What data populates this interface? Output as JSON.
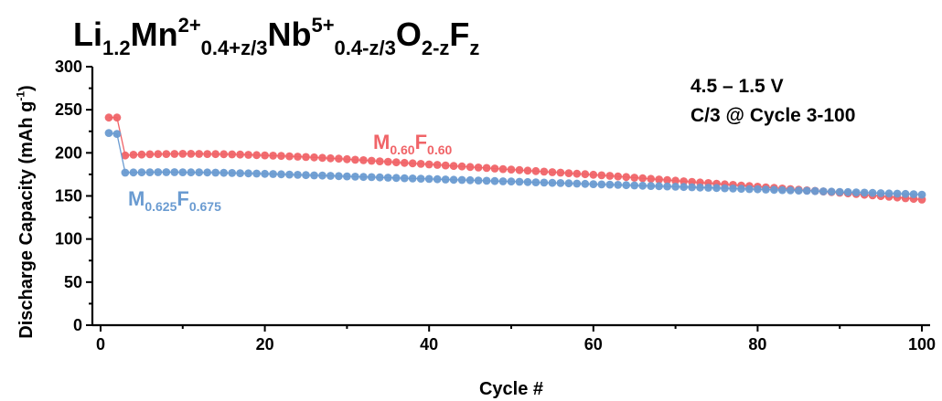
{
  "title": {
    "parts": [
      {
        "t": "Li",
        "k": "n"
      },
      {
        "t": "1.2",
        "k": "sub"
      },
      {
        "t": "Mn",
        "k": "n"
      },
      {
        "t": "2+",
        "k": "sup"
      },
      {
        "t": "0.4+z/3",
        "k": "sub"
      },
      {
        "t": "Nb",
        "k": "n"
      },
      {
        "t": "5+",
        "k": "sup"
      },
      {
        "t": "0.4-z/3",
        "k": "sub"
      },
      {
        "t": "O",
        "k": "n"
      },
      {
        "t": "2-z",
        "k": "sub"
      },
      {
        "t": "F",
        "k": "n"
      },
      {
        "t": "z",
        "k": "sub"
      }
    ]
  },
  "annotations": {
    "line1": "4.5 – 1.5 V",
    "line2": "C/3 @ Cycle 3-100"
  },
  "chart_data": {
    "type": "scatter",
    "xlabel": "Cycle #",
    "ylabel": "Discharge Capacity (mAh g-1)",
    "ylabel_parts": [
      {
        "t": "Discharge Capacity (mAh g",
        "k": "n"
      },
      {
        "t": "-1",
        "k": "sup"
      },
      {
        "t": ")",
        "k": "n"
      }
    ],
    "xlim": [
      -1,
      101
    ],
    "ylim": [
      0,
      300
    ],
    "xticks": [
      0,
      20,
      40,
      60,
      80,
      100
    ],
    "yticks": [
      0,
      50,
      100,
      150,
      200,
      250,
      300
    ],
    "grid": false,
    "x_start": 1,
    "series": [
      {
        "name_parts": [
          {
            "t": "M",
            "k": "n"
          },
          {
            "t": "0.60",
            "k": "sub"
          },
          {
            "t": "F",
            "k": "n"
          },
          {
            "t": "0.60",
            "k": "sub"
          }
        ],
        "color": "#f06468",
        "values": [
          241,
          241,
          197,
          197.8,
          198,
          198.3,
          198.5,
          198.7,
          198.8,
          198.9,
          198.9,
          198.8,
          198.7,
          198.6,
          198.4,
          198.2,
          198,
          197.7,
          197.4,
          197.1,
          196.8,
          196.4,
          196,
          195.6,
          195.2,
          194.7,
          194.2,
          193.7,
          193.2,
          192.6,
          192,
          191.4,
          190.8,
          190.2,
          189.6,
          189,
          188.4,
          187.8,
          187.2,
          186.6,
          186,
          185.4,
          184.8,
          184.2,
          183.6,
          183,
          182.4,
          181.8,
          181.2,
          180.6,
          180,
          179.4,
          178.8,
          178.2,
          177.6,
          177,
          176.4,
          175.8,
          175.2,
          174.6,
          174,
          173.3,
          172.6,
          171.9,
          171.2,
          170.5,
          169.8,
          169.1,
          168.4,
          167.7,
          167,
          166.3,
          165.6,
          164.9,
          164.2,
          163.5,
          162.8,
          162.1,
          161.4,
          160.7,
          160,
          159.3,
          158.6,
          157.9,
          157.2,
          156.5,
          155.8,
          155.1,
          154.4,
          153.7,
          153,
          152.2,
          151.4,
          150.6,
          149.8,
          149,
          148.2,
          147.4,
          146.6,
          145.8
        ]
      },
      {
        "name_parts": [
          {
            "t": "M",
            "k": "n"
          },
          {
            "t": "0.625",
            "k": "sub"
          },
          {
            "t": "F",
            "k": "n"
          },
          {
            "t": "0.675",
            "k": "sub"
          }
        ],
        "color": "#6a9bd1",
        "values": [
          223,
          222,
          177,
          177.2,
          177.4,
          177.5,
          177.6,
          177.6,
          177.6,
          177.5,
          177.4,
          177.3,
          177.2,
          177,
          176.8,
          176.6,
          176.4,
          176.2,
          176,
          175.7,
          175.4,
          175.1,
          174.8,
          174.5,
          174.2,
          173.9,
          173.6,
          173.3,
          173,
          172.7,
          172.4,
          172.1,
          171.8,
          171.5,
          171.2,
          170.9,
          170.6,
          170.3,
          170,
          169.7,
          169.4,
          169.1,
          168.8,
          168.5,
          168.2,
          167.9,
          167.6,
          167.3,
          167,
          166.7,
          166.4,
          166.1,
          165.8,
          165.5,
          165.2,
          164.9,
          164.6,
          164.3,
          164,
          163.7,
          163.4,
          163.1,
          162.8,
          162.5,
          162.2,
          161.9,
          161.6,
          161.3,
          161,
          160.7,
          160.4,
          160.1,
          159.8,
          159.5,
          159.2,
          158.9,
          158.6,
          158.3,
          158,
          157.7,
          157.4,
          157.1,
          156.8,
          156.5,
          156.2,
          155.9,
          155.6,
          155.3,
          155,
          154.7,
          154.4,
          154.1,
          153.8,
          153.5,
          153.2,
          152.9,
          152.6,
          152.3,
          152,
          151.5
        ]
      }
    ]
  }
}
